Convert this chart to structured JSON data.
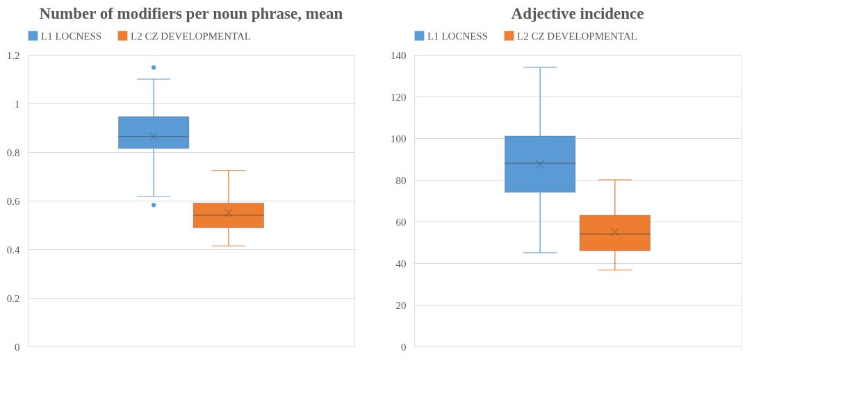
{
  "chart_data": [
    {
      "type": "box",
      "title": "Number of modifiers per noun phrase, mean",
      "categories": [
        null
      ],
      "ylim": [
        0,
        1.2
      ],
      "yticks": [
        0,
        0.2,
        0.4,
        0.6,
        0.8,
        1,
        1.2
      ],
      "grid": "y",
      "legend": "top",
      "tick_labels": "y",
      "series": [
        {
          "name": "L1 LOCNESS",
          "color": "#5b9bd5",
          "boxes": [
            {
              "low": 0.618,
              "q1": 0.815,
              "median": 0.864,
              "q3": 0.946,
              "high": 1.1,
              "mean": 0.864,
              "outliers": [
                1.148,
                0.582
              ]
            }
          ]
        },
        {
          "name": "L2 CZ DEVELOPMENTAL",
          "color": "#ed7d31",
          "boxes": [
            {
              "low": 0.414,
              "q1": 0.489,
              "median": 0.54,
              "q3": 0.59,
              "high": 0.724,
              "mean": 0.55
            }
          ]
        }
      ]
    },
    {
      "type": "box",
      "title": "Adjective incidence",
      "categories": [
        null
      ],
      "ylim": [
        0,
        140
      ],
      "yticks": [
        0,
        20,
        40,
        60,
        80,
        100,
        120,
        140
      ],
      "grid": "y",
      "legend": "top",
      "tick_labels": "y",
      "series": [
        {
          "name": "L1 LOCNESS",
          "color": "#5b9bd5",
          "boxes": [
            {
              "low": 45,
              "q1": 74,
              "median": 88,
              "q3": 101,
              "high": 134,
              "mean": 87.5
            }
          ]
        },
        {
          "name": "L2 CZ DEVELOPMENTAL",
          "color": "#ed7d31",
          "boxes": [
            {
              "low": 36.7,
              "q1": 46,
              "median": 54,
              "q3": 63,
              "high": 80,
              "mean": 55
            }
          ]
        }
      ]
    }
  ]
}
